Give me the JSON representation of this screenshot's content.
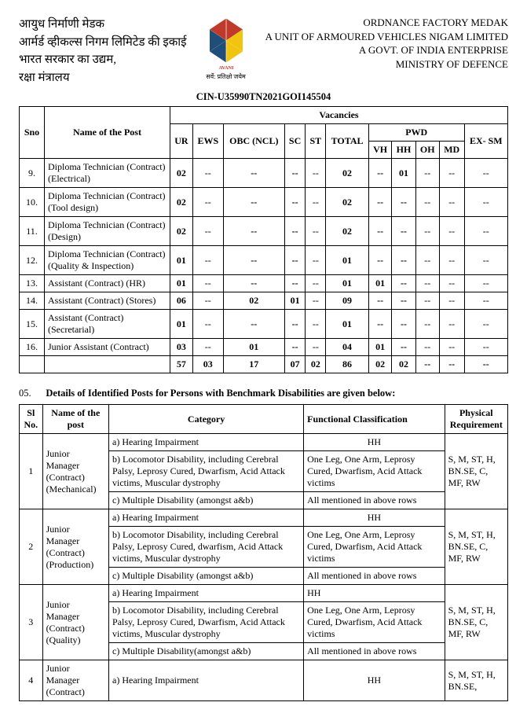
{
  "header": {
    "hindi_lines": [
      "आयुध निर्माणी मेडक",
      "आर्मर्ड व्हीकल्स निगम लिमिटेड की इकाई",
      "भारत सरकार का उद्यम,",
      "रक्षा मंत्रालय"
    ],
    "logo_caption": "सर्वे: प्रतिक्षो जयेम",
    "eng_lines": [
      "ORDNANCE FACTORY MEDAK",
      "A UNIT OF ARMOURED VEHICLES NIGAM LIMITED",
      "A GOVT. OF INDIA ENTERPRISE",
      "MINISTRY OF DEFENCE"
    ],
    "cin": "CIN-U35990TN2021GOI145504"
  },
  "table1": {
    "headers": {
      "sno": "Sno",
      "name": "Name of the Post",
      "vac": "Vacancies",
      "ur": "UR",
      "ews": "EWS",
      "obc": "OBC (NCL)",
      "sc": "SC",
      "st": "ST",
      "total": "TOTAL",
      "pwd": "PWD",
      "vh": "VH",
      "hh": "HH",
      "oh": "OH",
      "md": "MD",
      "exsm": "EX- SM"
    },
    "rows": [
      {
        "sno": "9.",
        "name": "Diploma Technician (Contract) (Electrical)",
        "ur": "02",
        "ews": "--",
        "obc": "--",
        "sc": "--",
        "st": "--",
        "total": "02",
        "vh": "--",
        "hh": "01",
        "oh": "--",
        "md": "--",
        "exsm": "--"
      },
      {
        "sno": "10.",
        "name": "Diploma Technician (Contract) (Tool design)",
        "ur": "02",
        "ews": "--",
        "obc": "--",
        "sc": "--",
        "st": "--",
        "total": "02",
        "vh": "--",
        "hh": "--",
        "oh": "--",
        "md": "--",
        "exsm": "--"
      },
      {
        "sno": "11.",
        "name": "Diploma Technician (Contract)  (Design)",
        "ur": "02",
        "ews": "--",
        "obc": "--",
        "sc": "--",
        "st": "--",
        "total": "02",
        "vh": "--",
        "hh": "--",
        "oh": "--",
        "md": "--",
        "exsm": "--"
      },
      {
        "sno": "12.",
        "name": "Diploma Technician (Contract) (Quality & Inspection)",
        "ur": "01",
        "ews": "--",
        "obc": "--",
        "sc": "--",
        "st": "--",
        "total": "01",
        "vh": "--",
        "hh": "--",
        "oh": "--",
        "md": "--",
        "exsm": "--"
      },
      {
        "sno": "13.",
        "name": "Assistant (Contract) (HR)",
        "ur": "01",
        "ews": "--",
        "obc": "--",
        "sc": "--",
        "st": "--",
        "total": "01",
        "vh": "01",
        "hh": "--",
        "oh": "--",
        "md": "--",
        "exsm": "--"
      },
      {
        "sno": "14.",
        "name": "Assistant (Contract) (Stores)",
        "ur": "06",
        "ews": "--",
        "obc": "02",
        "sc": "01",
        "st": "--",
        "total": "09",
        "vh": "--",
        "hh": "--",
        "oh": "--",
        "md": "--",
        "exsm": "--"
      },
      {
        "sno": "15.",
        "name": "Assistant (Contract) (Secretarial)",
        "ur": "01",
        "ews": "--",
        "obc": "--",
        "sc": "--",
        "st": "--",
        "total": "01",
        "vh": "--",
        "hh": "--",
        "oh": "--",
        "md": "--",
        "exsm": "--"
      },
      {
        "sno": "16.",
        "name": "Junior Assistant (Contract)",
        "ur": "03",
        "ews": "--",
        "obc": "01",
        "sc": "--",
        "st": "--",
        "total": "04",
        "vh": "01",
        "hh": "--",
        "oh": "--",
        "md": "--",
        "exsm": "--"
      }
    ],
    "totals": {
      "ur": "57",
      "ews": "03",
      "obc": "17",
      "sc": "07",
      "st": "02",
      "total": "86",
      "vh": "02",
      "hh": "02",
      "oh": "--",
      "md": "--",
      "exsm": "--"
    }
  },
  "section_title_num": "05.",
  "section_title_text": "Details of Identified Posts for Persons with Benchmark Disabilities are given below:",
  "table2": {
    "headers": {
      "sl": "Sl No.",
      "name": "Name of the post",
      "cat": "Category",
      "func": "Functional Classification",
      "phys": "Physical Requirement"
    },
    "groups": [
      {
        "sl": "1",
        "name": "Junior Manager (Contract) (Mechanical)",
        "phys": "S, M, ST, H, BN.SE, C, MF, RW",
        "rows": [
          {
            "cat": "a) Hearing Impairment",
            "func": "HH",
            "func_center": true
          },
          {
            "cat": "b) Locomotor Disability, including Cerebral Palsy, Leprosy Cured, Dwarfism, Acid Attack victims, Muscular dystrophy",
            "func": "One Leg, One Arm, Leprosy Cured, Dwarfism, Acid Attack victims"
          },
          {
            "cat": "c) Multiple Disability (amongst a&b)",
            "func": "All mentioned in above rows"
          }
        ]
      },
      {
        "sl": "2",
        "name": "Junior Manager (Contract) (Production)",
        "phys": "S, M, ST, H, BN.SE, C, MF, RW",
        "rows": [
          {
            "cat": "a) Hearing Impairment",
            "func": "HH",
            "func_center": true
          },
          {
            "cat": "b) Locomotor Disability, including Cerebral Palsy, Leprosy Cured, dwarfism, Acid Attack victims, Muscular dystrophy",
            "func": "One Leg, One Arm, Leprosy Cured, Dwarfism, Acid Attack victims"
          },
          {
            "cat": "c) Multiple Disability (amongst a&b)",
            "func": "All mentioned in above rows"
          }
        ]
      },
      {
        "sl": "3",
        "name": "Junior Manager (Contract) (Quality)",
        "phys": "S, M, ST, H, BN.SE, C, MF, RW",
        "rows": [
          {
            "cat": "a) Hearing Impairment",
            "func": "HH"
          },
          {
            "cat": "b) Locomotor Disability, including Cerebral Palsy, Leprosy Cured, Dwarfism, Acid Attack victims, Muscular dystrophy",
            "func": "One Leg, One Arm, Leprosy Cured, Dwarfism, Acid Attack victims"
          },
          {
            "cat": "c) Multiple Disability(amongst a&b)",
            "func": "All mentioned in above rows"
          }
        ]
      },
      {
        "sl": "4",
        "name": "Junior Manager (Contract)",
        "phys": "S, M, ST, H, BN.SE,",
        "rows": [
          {
            "cat": "a) Hearing Impairment",
            "func": "HH",
            "func_center": true
          }
        ]
      }
    ]
  },
  "logo_colors": {
    "red": "#c0392b",
    "yellow": "#f1c40f",
    "blue": "#1f4e79"
  }
}
